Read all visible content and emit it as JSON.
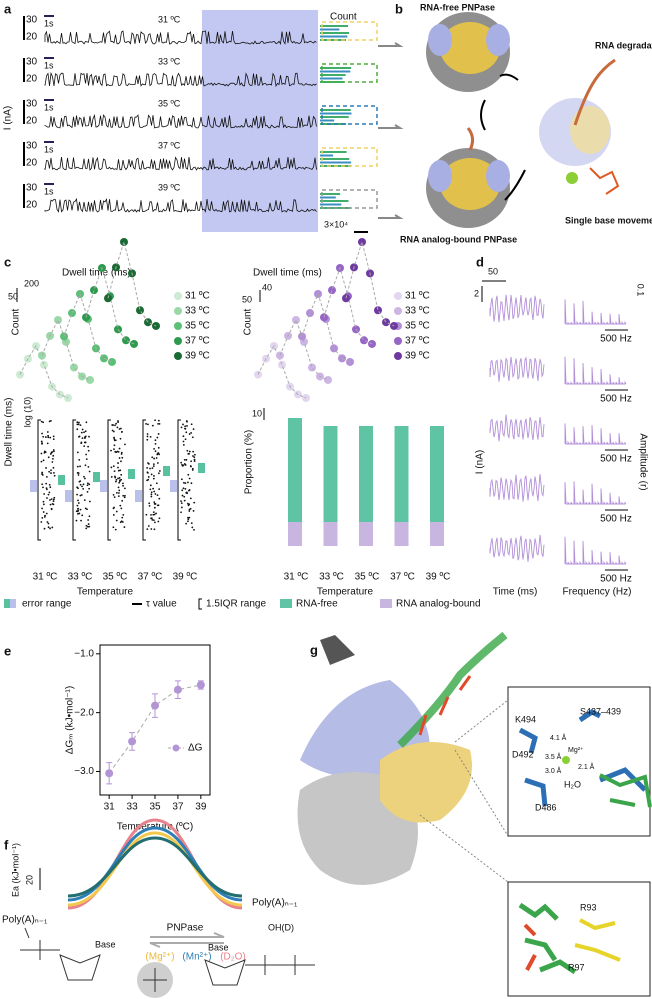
{
  "panels": {
    "a": {
      "label": "a",
      "y_axis": "I (nA)",
      "hist_title": "Count",
      "count_scale": "3×10⁴",
      "traces": [
        {
          "temp": "31 ºC",
          "scale_top": "30",
          "scale_bottom": "20",
          "time_scale": "1s"
        },
        {
          "temp": "33 ºC",
          "scale_top": "30",
          "scale_bottom": "20",
          "time_scale": "1s"
        },
        {
          "temp": "35 ºC",
          "scale_top": "30",
          "scale_bottom": "20",
          "time_scale": "1s"
        },
        {
          "temp": "37 ºC",
          "scale_top": "30",
          "scale_bottom": "20",
          "time_scale": "1s"
        },
        {
          "temp": "39 ºC",
          "scale_top": "30",
          "scale_bottom": "20",
          "time_scale": "1s"
        }
      ]
    },
    "b": {
      "label": "b",
      "free_state": "RNA-free PNPase",
      "bound_state": "RNA analog-bound PNPase",
      "process": "RNA degradation",
      "movement": "Single base movement"
    },
    "c": {
      "label": "c",
      "left": {
        "hist_title": "Dwell time (ms)",
        "x_scale": "200",
        "y_scale": "50",
        "y_label": "Count",
        "legend": [
          "31 ºC",
          "33 ºC",
          "35 ºC",
          "37 ºC",
          "39 ºC"
        ],
        "box_scale": "log (10)",
        "box_y_label": "Dwell time (ms)",
        "categories": [
          "31 ºC",
          "33 ºC",
          "35 ºC",
          "37 ºC",
          "39 ºC"
        ],
        "x_label": "Temperature"
      },
      "right": {
        "hist_title": "Dwell time (ms)",
        "x_scale": "40",
        "y_scale": "50",
        "y_label": "Count",
        "legend": [
          "31 ºC",
          "33 ºC",
          "35 ºC",
          "37 ºC",
          "39 ºC"
        ],
        "bar_scale": "10",
        "bar_y_label": "Proportion (%)",
        "categories": [
          "31 ºC",
          "33 ºC",
          "35 ºC",
          "37 ºC",
          "39 ºC"
        ],
        "x_label": "Temperature"
      },
      "legend": [
        "error range",
        "τ value",
        "1.5IQR range",
        "RNA-free",
        "RNA analog-bound"
      ]
    },
    "d": {
      "label": "d",
      "time_scale": "50",
      "current_scale": "2",
      "amplitude_scale": "0.1",
      "freq_scales": [
        "500 Hz",
        "500 Hz",
        "500 Hz",
        "500 Hz",
        "500 Hz"
      ],
      "y_label_left": "I (nA)",
      "y_label_right": "Amplitude (r)",
      "x_label_left": "Time (ms)",
      "x_label_right": "Frequency (Hz)"
    },
    "e": {
      "label": "e",
      "type": "scatter",
      "x": [
        31,
        33,
        35,
        37,
        39
      ],
      "values": [
        -3.03,
        -2.49,
        -1.88,
        -1.61,
        -1.53
      ],
      "errors": [
        0.18,
        0.15,
        0.2,
        0.15,
        0.07
      ],
      "color": "#b395d6",
      "xlim": [
        30.2,
        39.8
      ],
      "ylim": [
        -3.4,
        -0.85
      ],
      "xticks": [
        31,
        33,
        35,
        37,
        39
      ],
      "yticks": [
        {
          "value": -1,
          "label": "−1.0"
        },
        {
          "value": -2,
          "label": "−2.0"
        },
        {
          "value": -3,
          "label": "−3.0"
        }
      ],
      "y_label": "ΔGₘ (kJ•mol⁻¹)",
      "x_label": "Temperature (ºC)",
      "legend": "ΔG"
    },
    "f": {
      "label": "f",
      "y_label": "Ea (kJ•mol⁻¹)",
      "y_scale": "20",
      "enzyme": "PNPase",
      "conditions": [
        "(Mg²⁺)",
        "(Mn²⁺)",
        "(D₂O)"
      ],
      "substrate_left": "Poly(A)ₙ₋₁",
      "product_right": "Poly(A)ₙ₋₁",
      "hydroxyl": "OH(D)",
      "base_left": "Base",
      "base_right": "Base"
    },
    "g": {
      "label": "g",
      "inset_top": {
        "k494": "K494",
        "s437": "S437–439",
        "d492": "D492",
        "mg": "Mg²⁺",
        "d1": "4.1 Å",
        "d2": "3.5 Å",
        "d3": "2.1 Å",
        "d4": "3.0 Å",
        "water": "H₂O",
        "d486": "D486"
      },
      "inset_bottom": {
        "r93": "R93",
        "r97": "R97"
      }
    }
  }
}
